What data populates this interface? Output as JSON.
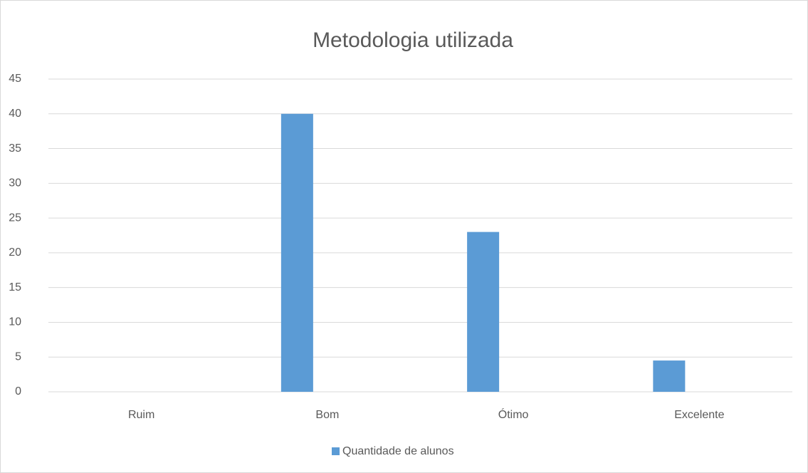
{
  "chart_data": {
    "type": "bar",
    "title": "Metodologia utilizada",
    "categories": [
      "Ruim",
      "Bom",
      "Ótimo",
      "Excelente"
    ],
    "series": [
      {
        "name": "Quantidade de alunos",
        "color": "#5b9bd5",
        "values": [
          0,
          40,
          23,
          4.5
        ]
      }
    ],
    "ylim": [
      0,
      45
    ],
    "yticks": [
      0,
      5,
      10,
      15,
      20,
      25,
      30,
      35,
      40,
      45
    ],
    "grid": true,
    "legend": "bottom"
  }
}
